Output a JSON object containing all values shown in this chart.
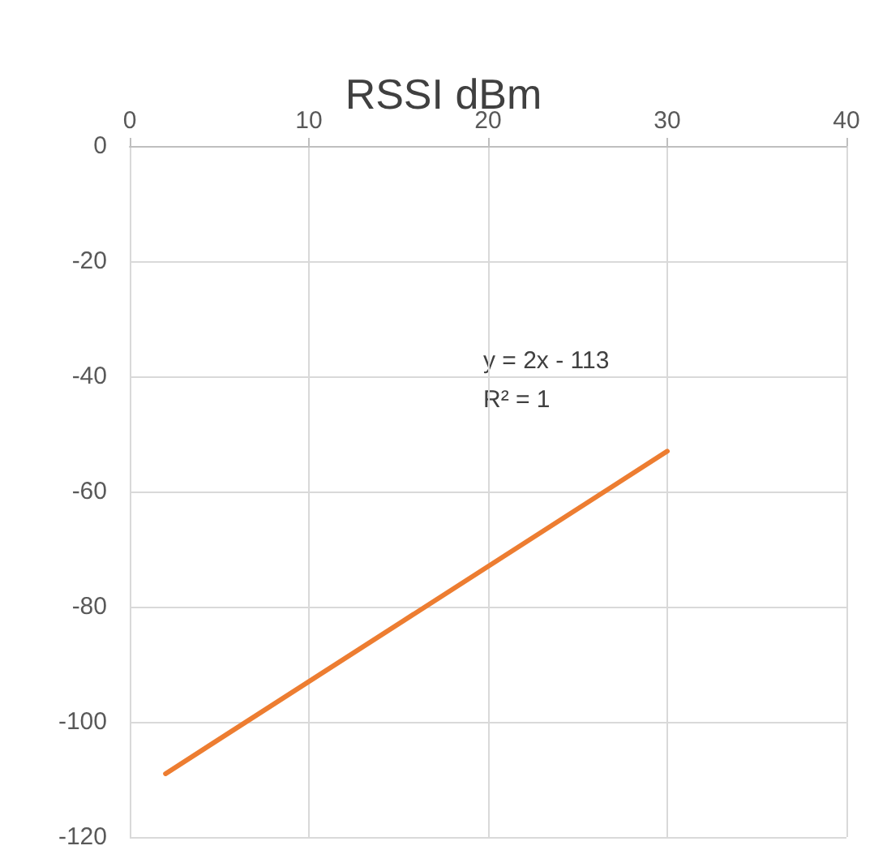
{
  "chart_data": {
    "type": "line",
    "title": "RSSI dBm",
    "x": [
      2,
      30
    ],
    "series": [
      {
        "color": "#ed7d31",
        "values": [
          -109,
          -53
        ]
      }
    ],
    "xlim": [
      0,
      40
    ],
    "xticks": [
      0,
      10,
      20,
      30,
      40
    ],
    "ylim": [
      -120,
      0
    ],
    "yticks": [
      -120,
      -100,
      -80,
      -60,
      -40,
      -20,
      0
    ],
    "grid": true,
    "marker": "none",
    "line_style": "solid",
    "annotations": [
      "y = 2x - 113",
      "R² = 1"
    ]
  }
}
